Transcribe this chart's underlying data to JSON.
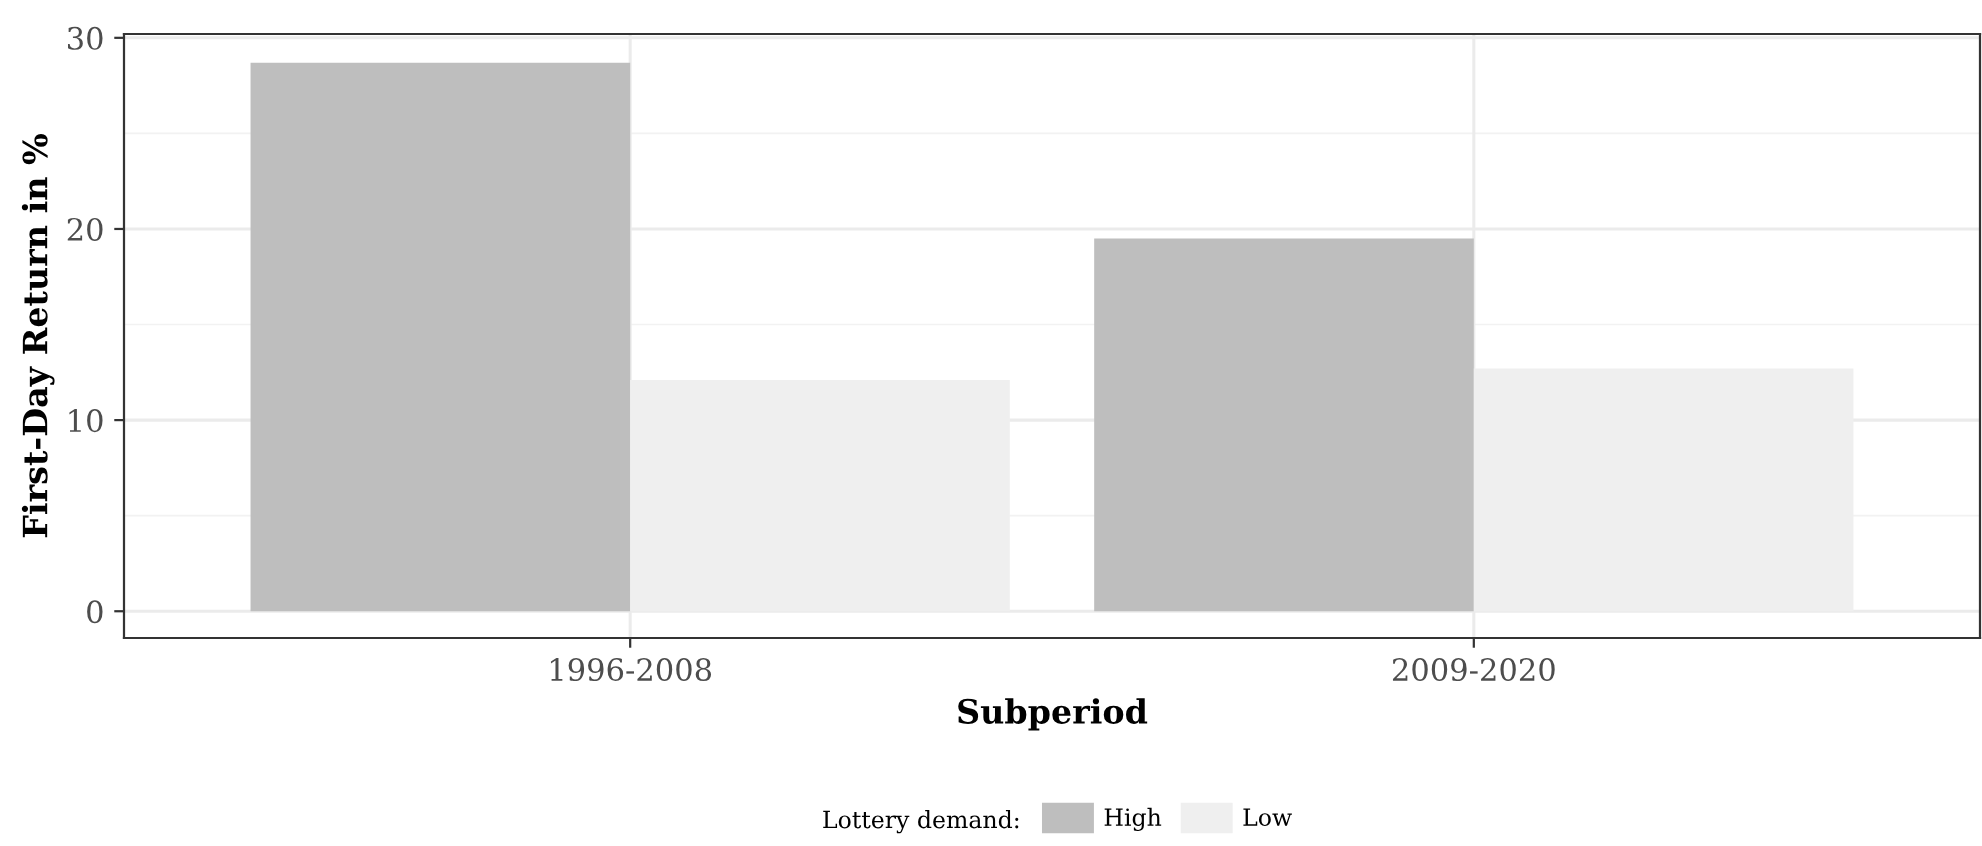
{
  "chart_data": {
    "type": "bar",
    "xlabel": "Subperiod",
    "ylabel": "First-Day Return in %",
    "legend_title": "Lottery demand:",
    "categories": [
      "1996-2008",
      "2009-2020"
    ],
    "series": [
      {
        "name": "High",
        "color": "#bebebe",
        "values": [
          28.7,
          19.5
        ]
      },
      {
        "name": "Low",
        "color": "#efefef",
        "values": [
          12.1,
          12.7
        ]
      }
    ],
    "ylim": [
      -1.4,
      30.2
    ],
    "yticks": [
      0,
      10,
      20,
      30
    ],
    "grid": true,
    "legend": "bottom"
  }
}
